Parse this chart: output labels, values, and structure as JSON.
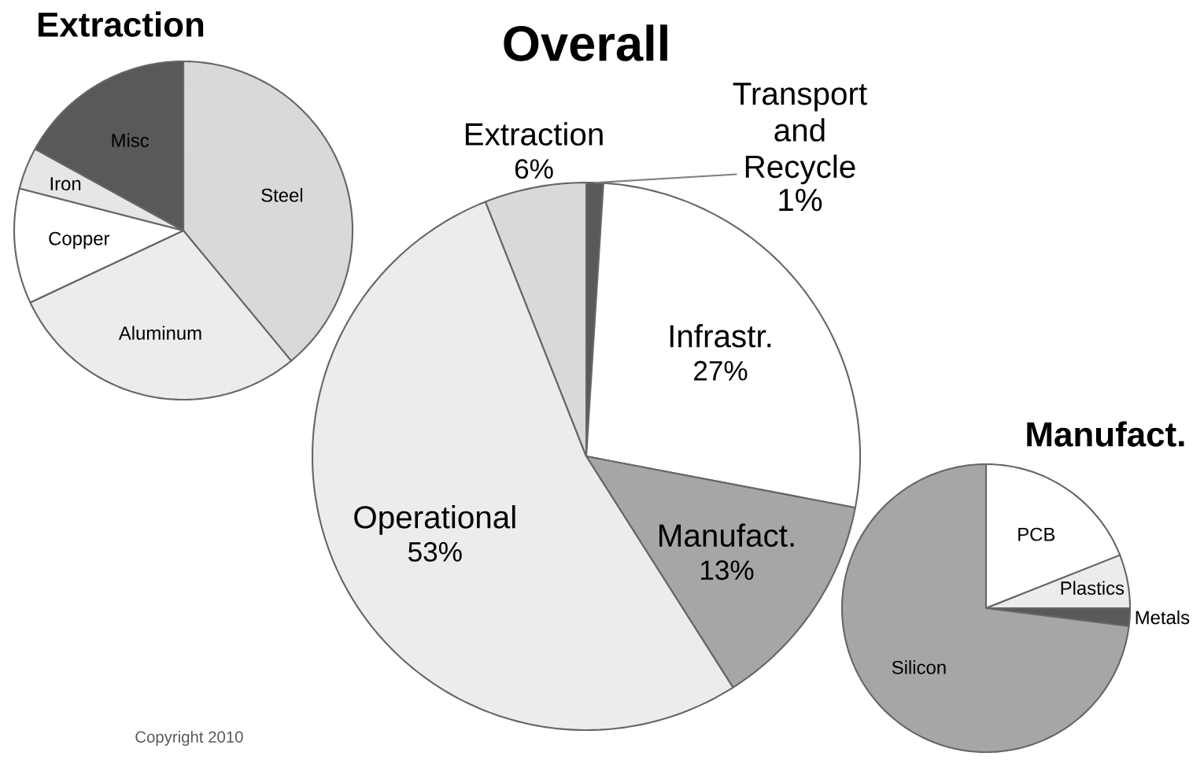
{
  "chart_data": [
    {
      "type": "pie",
      "title": "Extraction",
      "categories": [
        "Steel",
        "Aluminum",
        "Copper",
        "Iron",
        "Misc"
      ],
      "values": [
        39,
        29,
        11,
        4,
        17
      ],
      "colors": [
        "#d9d9d9",
        "#ececec",
        "#ffffff",
        "#e6e6e6",
        "#595959"
      ]
    },
    {
      "type": "pie",
      "title": "Overall",
      "categories": [
        "Transport and Recycle",
        "Infrastr.",
        "Manufact.",
        "Operational",
        "Extraction"
      ],
      "values": [
        1,
        27,
        13,
        53,
        6
      ],
      "value_labels": [
        "1%",
        "27%",
        "13%",
        "53%",
        "6%"
      ],
      "colors": [
        "#595959",
        "#ffffff",
        "#a6a6a6",
        "#ececec",
        "#d9d9d9"
      ],
      "annotations": [
        "Copyright 2010"
      ]
    },
    {
      "type": "pie",
      "title": "Manufact.",
      "categories": [
        "PCB",
        "Plastics",
        "Metals",
        "Silicon"
      ],
      "values": [
        19,
        6,
        2,
        73
      ],
      "colors": [
        "#ffffff",
        "#ececec",
        "#595959",
        "#a6a6a6"
      ]
    }
  ]
}
